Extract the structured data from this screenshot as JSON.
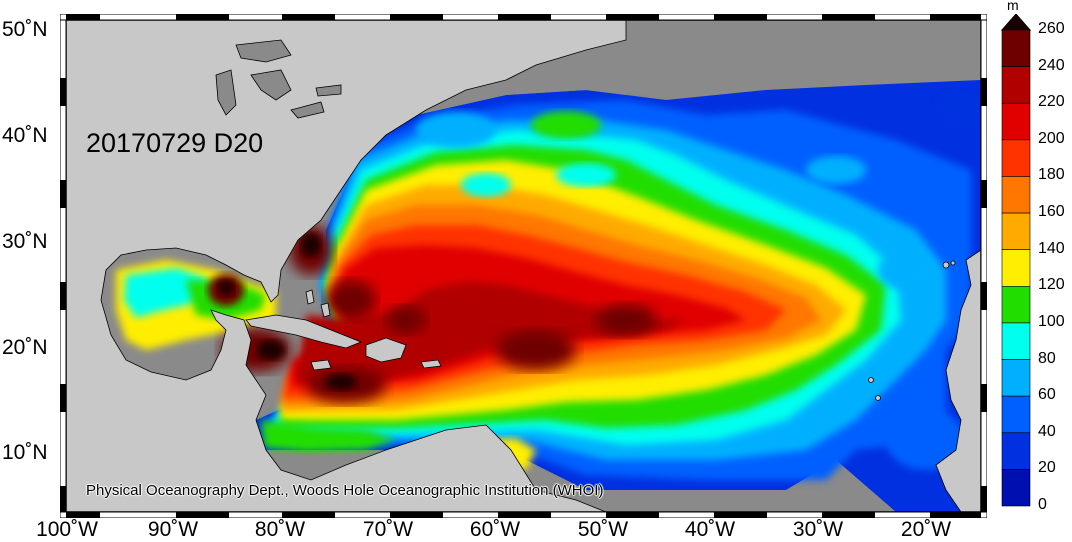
{
  "map": {
    "date_label": "20170729 D20",
    "credit": "Physical Oceanography Dept., Woods Hole Oceanographic Institution (WHOI)",
    "latitude_labels": [
      "50˚N",
      "40˚N",
      "30˚N",
      "20˚N",
      "10˚N"
    ],
    "longitude_labels": [
      "100˚W",
      "90˚W",
      "80˚W",
      "70˚W",
      "60˚W",
      "50˚W",
      "40˚W",
      "30˚W",
      "20˚W"
    ],
    "extent": {
      "lon_min": -101,
      "lon_max": -15,
      "lat_min": 4,
      "lat_max": 51
    },
    "colors": {
      "land": "#c8c8c8",
      "no_data": "#8a8a8a"
    }
  },
  "colorbar": {
    "unit": "m",
    "ticks": [
      "260",
      "240",
      "220",
      "200",
      "180",
      "160",
      "140",
      "120",
      "100",
      "80",
      "60",
      "40",
      "20",
      "0"
    ],
    "colors": [
      "#1a0000",
      "#6e0000",
      "#b00000",
      "#e00000",
      "#ff3300",
      "#ff7700",
      "#ffaa00",
      "#ffee00",
      "#22dd00",
      "#00ffee",
      "#00b0ff",
      "#0060ff",
      "#0030e0",
      "#0010b0"
    ]
  }
}
